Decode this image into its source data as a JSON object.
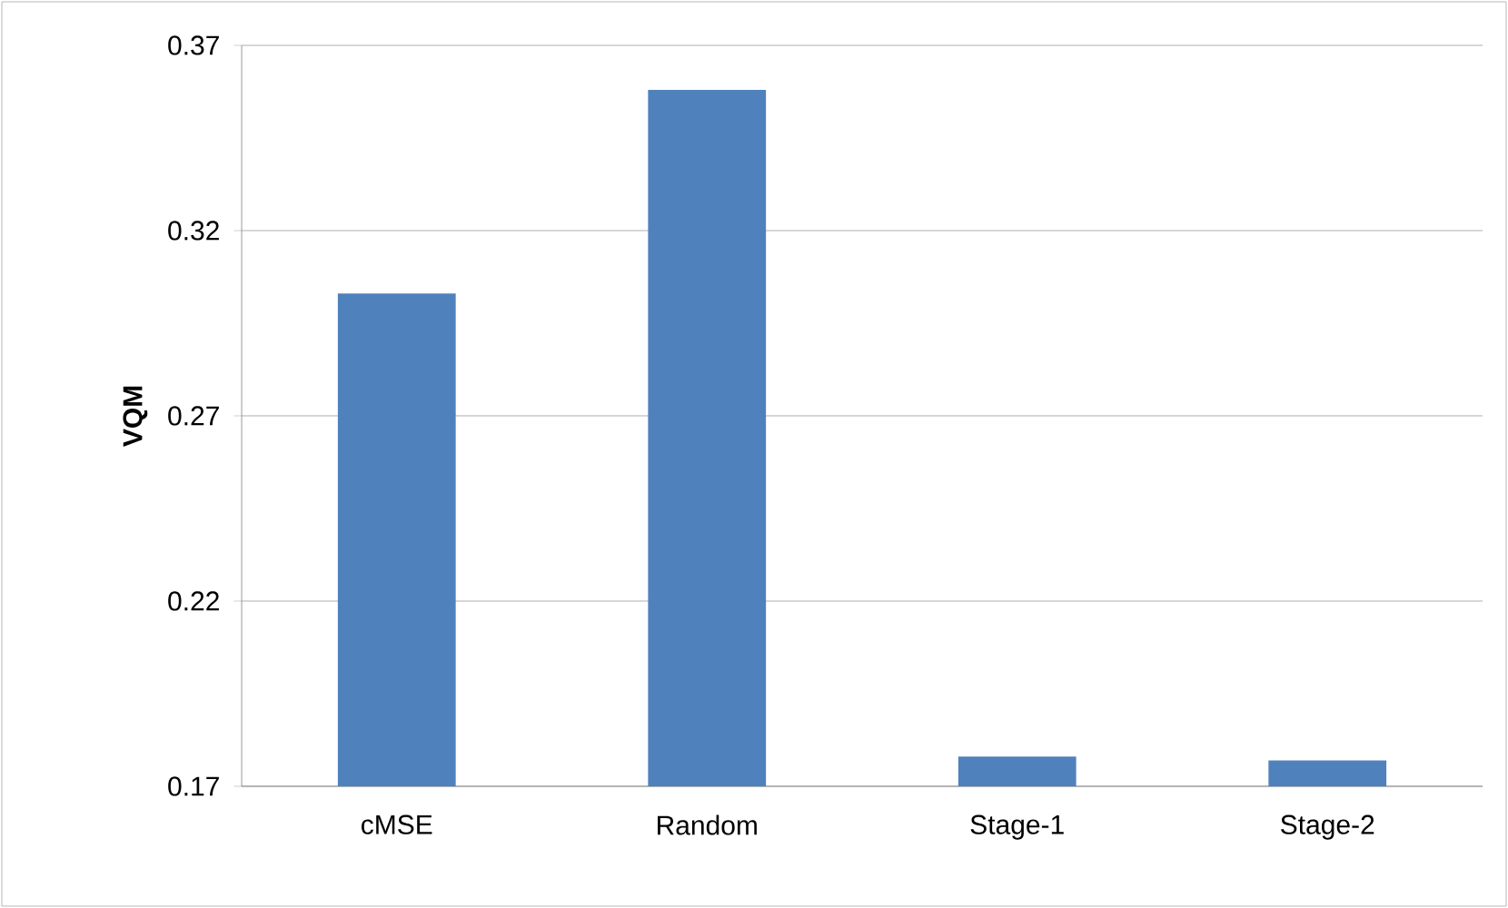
{
  "chart_data": {
    "type": "bar",
    "ylabel": "VQM",
    "categories": [
      "cMSE",
      "Random",
      "Stage-1",
      "Stage-2"
    ],
    "values": [
      0.303,
      0.358,
      0.178,
      0.177
    ],
    "color": "#4f81bd",
    "ylim": [
      0.17,
      0.37
    ],
    "yticks": [
      0.17,
      0.22,
      0.27,
      0.32,
      0.37
    ],
    "grid": "y"
  }
}
